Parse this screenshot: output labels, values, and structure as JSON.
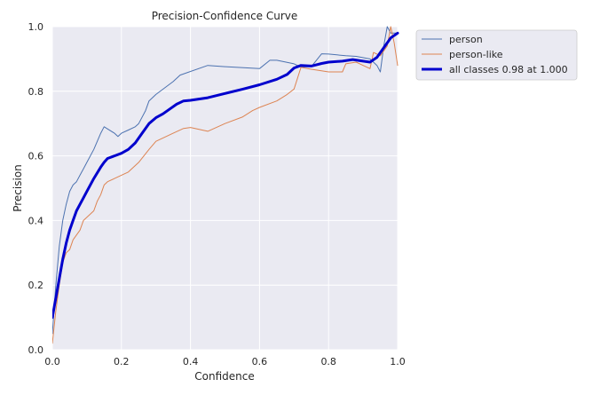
{
  "chart_data": {
    "type": "line",
    "title": "Precision-Confidence Curve",
    "xlabel": "Confidence",
    "ylabel": "Precision",
    "xlim": [
      0,
      1
    ],
    "ylim": [
      0,
      1
    ],
    "xticks": [
      "0.0",
      "0.2",
      "0.4",
      "0.6",
      "0.8",
      "1.0"
    ],
    "yticks": [
      "0.0",
      "0.2",
      "0.4",
      "0.6",
      "0.8",
      "1.0"
    ],
    "grid": true,
    "legend_position": "outside-right-top",
    "background_color": "#eaeaf2",
    "grid_color": "#ffffff",
    "series": [
      {
        "name": "person",
        "color": "#4c72b0",
        "width": 1,
        "x": [
          0.0,
          0.01,
          0.02,
          0.03,
          0.04,
          0.05,
          0.06,
          0.07,
          0.08,
          0.09,
          0.1,
          0.12,
          0.14,
          0.15,
          0.18,
          0.19,
          0.2,
          0.22,
          0.24,
          0.25,
          0.27,
          0.28,
          0.3,
          0.35,
          0.37,
          0.45,
          0.5,
          0.6,
          0.63,
          0.65,
          0.7,
          0.72,
          0.75,
          0.78,
          0.8,
          0.85,
          0.88,
          0.92,
          0.94,
          0.95,
          0.96,
          0.97,
          0.98,
          1.0
        ],
        "y": [
          0.05,
          0.2,
          0.32,
          0.4,
          0.45,
          0.49,
          0.51,
          0.52,
          0.54,
          0.56,
          0.58,
          0.62,
          0.67,
          0.69,
          0.67,
          0.66,
          0.67,
          0.68,
          0.69,
          0.7,
          0.74,
          0.77,
          0.79,
          0.83,
          0.85,
          0.88,
          0.876,
          0.87,
          0.896,
          0.896,
          0.885,
          0.875,
          0.876,
          0.916,
          0.915,
          0.91,
          0.908,
          0.9,
          0.88,
          0.86,
          0.94,
          1.0,
          0.98,
          0.98
        ]
      },
      {
        "name": "person-like",
        "color": "#dd8452",
        "width": 1,
        "x": [
          0.0,
          0.01,
          0.02,
          0.03,
          0.04,
          0.05,
          0.06,
          0.08,
          0.09,
          0.1,
          0.12,
          0.13,
          0.14,
          0.15,
          0.16,
          0.18,
          0.2,
          0.22,
          0.24,
          0.25,
          0.28,
          0.3,
          0.35,
          0.38,
          0.4,
          0.45,
          0.5,
          0.55,
          0.58,
          0.6,
          0.65,
          0.68,
          0.7,
          0.72,
          0.75,
          0.8,
          0.84,
          0.85,
          0.88,
          0.9,
          0.92,
          0.93,
          0.95,
          0.97,
          0.98,
          0.99,
          1.0
        ],
        "y": [
          0.02,
          0.12,
          0.2,
          0.27,
          0.3,
          0.31,
          0.34,
          0.37,
          0.4,
          0.41,
          0.43,
          0.46,
          0.48,
          0.51,
          0.52,
          0.53,
          0.54,
          0.55,
          0.57,
          0.58,
          0.62,
          0.645,
          0.67,
          0.685,
          0.688,
          0.676,
          0.7,
          0.72,
          0.74,
          0.75,
          0.77,
          0.79,
          0.807,
          0.874,
          0.868,
          0.86,
          0.86,
          0.885,
          0.89,
          0.88,
          0.87,
          0.92,
          0.91,
          0.94,
          1.0,
          0.95,
          0.88
        ]
      },
      {
        "name": "all classes 0.98 at 1.000",
        "color": "#0000cd",
        "width": 3,
        "x": [
          0.0,
          0.01,
          0.02,
          0.03,
          0.04,
          0.05,
          0.06,
          0.07,
          0.08,
          0.09,
          0.1,
          0.12,
          0.14,
          0.15,
          0.16,
          0.18,
          0.2,
          0.22,
          0.24,
          0.26,
          0.28,
          0.3,
          0.32,
          0.34,
          0.36,
          0.38,
          0.4,
          0.45,
          0.5,
          0.55,
          0.6,
          0.65,
          0.68,
          0.7,
          0.72,
          0.75,
          0.78,
          0.8,
          0.84,
          0.87,
          0.9,
          0.92,
          0.94,
          0.96,
          0.98,
          1.0
        ],
        "y": [
          0.1,
          0.16,
          0.22,
          0.28,
          0.33,
          0.37,
          0.4,
          0.43,
          0.45,
          0.47,
          0.49,
          0.53,
          0.565,
          0.58,
          0.592,
          0.6,
          0.608,
          0.62,
          0.64,
          0.67,
          0.7,
          0.718,
          0.73,
          0.745,
          0.76,
          0.77,
          0.772,
          0.78,
          0.793,
          0.806,
          0.82,
          0.837,
          0.852,
          0.872,
          0.88,
          0.878,
          0.886,
          0.89,
          0.893,
          0.898,
          0.893,
          0.89,
          0.905,
          0.935,
          0.965,
          0.98
        ]
      }
    ]
  }
}
